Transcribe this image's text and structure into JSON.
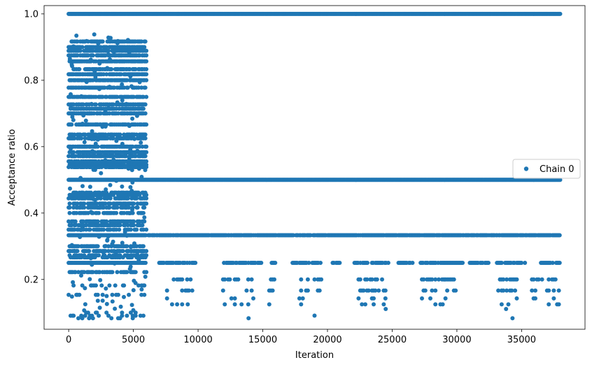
{
  "chart_data": {
    "type": "scatter",
    "title": "",
    "xlabel": "Iteration",
    "ylabel": "Acceptance ratio",
    "xlim": [
      -1900,
      39900
    ],
    "ylim": [
      0.05,
      1.025
    ],
    "xticks": [
      0,
      5000,
      10000,
      15000,
      20000,
      25000,
      30000,
      35000
    ],
    "xtick_labels": [
      "0",
      "5000",
      "10000",
      "15000",
      "20000",
      "25000",
      "30000",
      "35000"
    ],
    "yticks": [
      0.2,
      0.4,
      0.6,
      0.8,
      1.0
    ],
    "ytick_labels": [
      "0.2",
      "0.4",
      "0.6",
      "0.8",
      "1.0"
    ],
    "grid": false,
    "legend_position": "center-right",
    "marker_color": "#1f77b4",
    "series": [
      {
        "name": "Chain 0",
        "x_range": [
          0,
          38000
        ],
        "bands": [
          {
            "y": 1.0,
            "x_from": 0,
            "x_to": 38000,
            "density": "continuous"
          },
          {
            "y": 0.5,
            "x_from": 0,
            "x_to": 38000,
            "density": "continuous"
          },
          {
            "y": 0.3333,
            "x_from": 0,
            "x_to": 38000,
            "density": "dense"
          },
          {
            "y": 0.25,
            "x_from": 0,
            "x_to": 38000,
            "density": "medium"
          },
          {
            "y": 0.2,
            "x_from": 0,
            "x_to": 38000,
            "density": "sparse"
          },
          {
            "y": 0.1667,
            "x_from": 0,
            "x_to": 38000,
            "density": "sparse"
          },
          {
            "y": 0.1429,
            "x_from": 0,
            "x_to": 38000,
            "density": "very sparse"
          },
          {
            "y": 0.125,
            "x_from": 0,
            "x_to": 38000,
            "density": "very sparse"
          }
        ],
        "burn_in": {
          "x_from": 0,
          "x_to": 6000,
          "y_min": 0.07,
          "y_max": 0.94,
          "y_levels": [
            0.9167,
            0.9,
            0.8889,
            0.875,
            0.8571,
            0.8333,
            0.8182,
            0.8,
            0.7778,
            0.75,
            0.7273,
            0.7143,
            0.7,
            0.6667,
            0.6364,
            0.625,
            0.6,
            0.5833,
            0.5714,
            0.5556,
            0.5455,
            0.5385,
            0.4615,
            0.4545,
            0.4444,
            0.4286,
            0.4167,
            0.4,
            0.375,
            0.3636,
            0.35,
            0.3,
            0.2857,
            0.2727,
            0.2667,
            0.2222,
            0.1818,
            0.1538,
            0.1,
            0.0909,
            0.0833
          ]
        }
      }
    ]
  }
}
